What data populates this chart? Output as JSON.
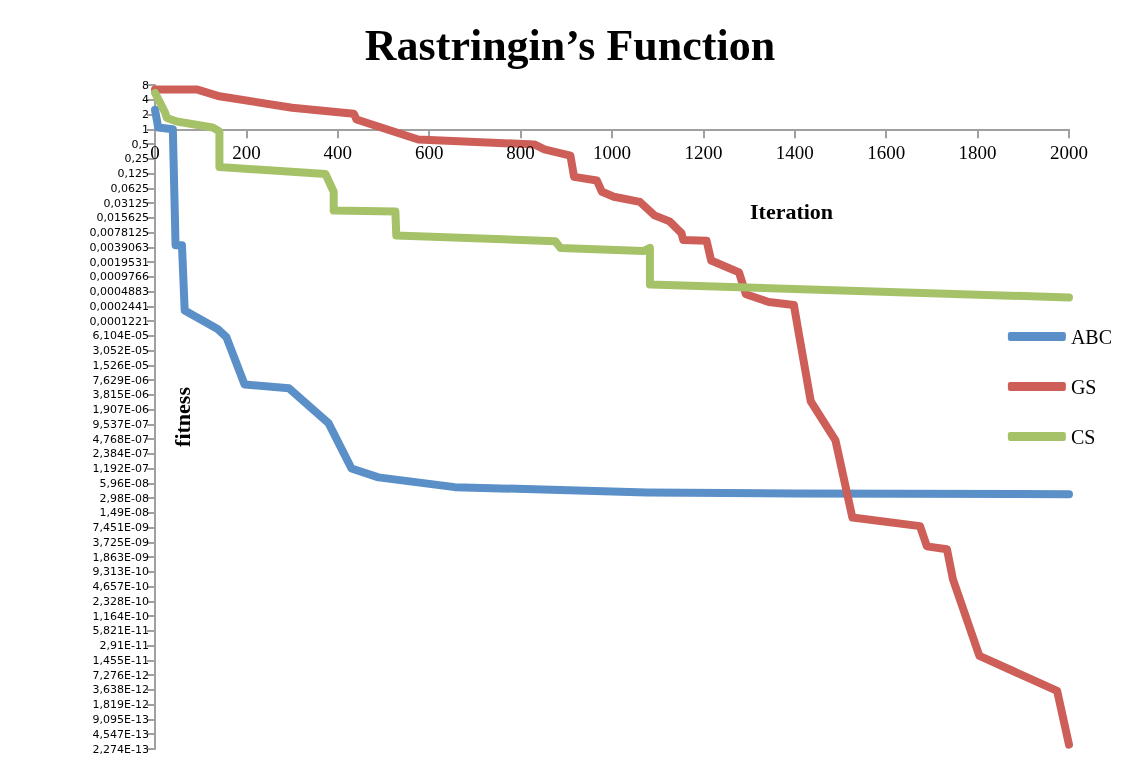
{
  "chart_data": {
    "type": "line",
    "title": "Rastringin’s Function",
    "xlabel": "Iteration",
    "ylabel": "fitness",
    "xlim": [
      0,
      2000
    ],
    "xticks": [
      0,
      200,
      400,
      600,
      800,
      1000,
      1200,
      1400,
      1600,
      1800,
      2000
    ],
    "log": "y",
    "ylim": [
      2.274e-13,
      8
    ],
    "yticks": [
      8,
      4,
      2,
      1,
      {
        "value": 0.5,
        "label": "0,5"
      },
      {
        "value": 0.25,
        "label": "0,25"
      },
      {
        "value": 0.125,
        "label": "0,125"
      },
      {
        "value": 0.0625,
        "label": "0,0625"
      },
      {
        "value": 0.03125,
        "label": "0,03125"
      },
      {
        "value": 0.015625,
        "label": "0,015625"
      },
      {
        "value": 0.0078125,
        "label": "0,0078125"
      },
      {
        "value": 0.0039063,
        "label": "0,0039063"
      },
      {
        "value": 0.0019531,
        "label": "0,0019531"
      },
      {
        "value": 0.0009766,
        "label": "0,0009766"
      },
      {
        "value": 0.0004883,
        "label": "0,0004883"
      },
      {
        "value": 0.0002441,
        "label": "0,0002441"
      },
      {
        "value": 0.0001221,
        "label": "0,0001221"
      },
      {
        "value": 6.104e-05,
        "label": "6,104E-05"
      },
      {
        "value": 3.052e-05,
        "label": "3,052E-05"
      },
      {
        "value": 1.526e-05,
        "label": "1,526E-05"
      },
      {
        "value": 7.629e-06,
        "label": "7,629E-06"
      },
      {
        "value": 3.815e-06,
        "label": "3,815E-06"
      },
      {
        "value": 1.907e-06,
        "label": "1,907E-06"
      },
      {
        "value": 9.537e-07,
        "label": "9,537E-07"
      },
      {
        "value": 4.768e-07,
        "label": "4,768E-07"
      },
      {
        "value": 2.384e-07,
        "label": "2,384E-07"
      },
      {
        "value": 1.192e-07,
        "label": "1,192E-07"
      },
      {
        "value": 5.96e-08,
        "label": "5,96E-08"
      },
      {
        "value": 2.98e-08,
        "label": "2,98E-08"
      },
      {
        "value": 1.49e-08,
        "label": "1,49E-08"
      },
      {
        "value": 7.451e-09,
        "label": "7,451E-09"
      },
      {
        "value": 3.725e-09,
        "label": "3,725E-09"
      },
      {
        "value": 1.863e-09,
        "label": "1,863E-09"
      },
      {
        "value": 9.313e-10,
        "label": "9,313E-10"
      },
      {
        "value": 4.657e-10,
        "label": "4,657E-10"
      },
      {
        "value": 2.328e-10,
        "label": "2,328E-10"
      },
      {
        "value": 1.164e-10,
        "label": "1,164E-10"
      },
      {
        "value": 5.821e-11,
        "label": "5,821E-11"
      },
      {
        "value": 2.91e-11,
        "label": "2,91E-11"
      },
      {
        "value": 1.455e-11,
        "label": "1,455E-11"
      },
      {
        "value": 7.276e-12,
        "label": "7,276E-12"
      },
      {
        "value": 3.638e-12,
        "label": "3,638E-12"
      },
      {
        "value": 1.819e-12,
        "label": "1,819E-12"
      },
      {
        "value": 9.095e-13,
        "label": "9,095E-13"
      },
      {
        "value": 4.547e-13,
        "label": "4,547E-13"
      },
      {
        "value": 2.274e-13,
        "label": "2,274E-13"
      }
    ],
    "grid": false,
    "legend": "right",
    "series": [
      {
        "name": "ABC",
        "color": "#5b8fc7",
        "x": [
          0,
          7,
          39,
          45,
          59,
          65,
          137,
          156,
          196,
          293,
          380,
          430,
          489,
          656,
          1076,
          1400,
          2000
        ],
        "values": [
          2.5,
          1.09,
          1.0,
          0.0043,
          0.0043,
          0.0002,
          8.4e-05,
          5.8e-05,
          6.2e-06,
          5.2e-06,
          1e-06,
          1.2e-07,
          7.9e-08,
          5e-08,
          3.9e-08,
          3.7e-08,
          3.6e-08
        ]
      },
      {
        "name": "GS",
        "color": "#cd5f58",
        "x": [
          0,
          91,
          141,
          300,
          435,
          441,
          576,
          830,
          852,
          909,
          917,
          967,
          978,
          1004,
          1061,
          1093,
          1126,
          1152,
          1156,
          1207,
          1217,
          1278,
          1293,
          1343,
          1398,
          1409,
          1435,
          1489,
          1526,
          1674,
          1689,
          1733,
          1746,
          1804,
          1974,
          2000
        ],
        "values": [
          6.5,
          6.5,
          4.7,
          2.75,
          2.08,
          1.58,
          0.62,
          0.49,
          0.39,
          0.29,
          0.107,
          0.09,
          0.053,
          0.042,
          0.033,
          0.0175,
          0.0132,
          0.0076,
          0.0055,
          0.0053,
          0.0021,
          0.0012,
          0.00043,
          0.0003,
          0.00026,
          6.6e-05,
          2.8e-06,
          4.5e-07,
          1.2e-08,
          8e-09,
          3.1e-09,
          2.7e-09,
          6.6e-10,
          1.8e-11,
          3.5e-12,
          2.8e-13
        ]
      },
      {
        "name": "CS",
        "color": "#a6c268",
        "x": [
          0,
          11,
          22,
          26,
          48,
          126,
          141,
          141,
          373,
          391,
          391,
          526,
          528,
          876,
          887,
          1070,
          1083,
          1083,
          2000
        ],
        "values": [
          5.5,
          3.5,
          2.2,
          1.7,
          1.44,
          1.09,
          0.9,
          0.17,
          0.122,
          0.053,
          0.022,
          0.021,
          0.0068,
          0.0052,
          0.0038,
          0.0033,
          0.0038,
          0.00068,
          0.00037
        ]
      }
    ]
  }
}
